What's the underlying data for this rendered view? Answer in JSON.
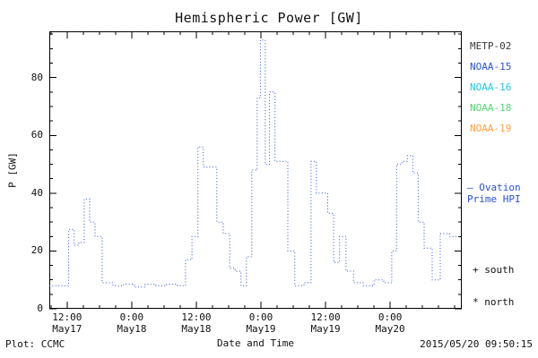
{
  "chart_data": {
    "type": "line",
    "style": "dotted-step",
    "title": "Hemispheric Power [GW]",
    "xlabel": "Date and Time",
    "ylabel": "P [GW]",
    "x_domain_hours": [
      -3.3,
      73.3
    ],
    "ylim": [
      0,
      96
    ],
    "y_ticks": [
      0,
      20,
      40,
      60,
      80
    ],
    "x_minor_step_hours": 3,
    "y_minor_step": 5,
    "grid": false,
    "x_ticks": [
      {
        "t": 0,
        "time": "12:00",
        "date": "May17"
      },
      {
        "t": 12,
        "time": "0:00",
        "date": "May18"
      },
      {
        "t": 24,
        "time": "12:00",
        "date": "May18"
      },
      {
        "t": 36,
        "time": "0:00",
        "date": "May19"
      },
      {
        "t": 48,
        "time": "12:00",
        "date": "May19"
      },
      {
        "t": 60,
        "time": "0:00",
        "date": "May20"
      }
    ],
    "series": [
      {
        "name": "Ovation Prime HPI",
        "color": "#2a52c9",
        "points": [
          [
            -3.3,
            8
          ],
          [
            0.3,
            27.5
          ],
          [
            1.3,
            22
          ],
          [
            2.2,
            23
          ],
          [
            3.2,
            38
          ],
          [
            4.2,
            30
          ],
          [
            5.2,
            25
          ],
          [
            6.5,
            9
          ],
          [
            8.5,
            8
          ],
          [
            10.5,
            8.5
          ],
          [
            12.5,
            7.5
          ],
          [
            14.5,
            8.5
          ],
          [
            16.5,
            8
          ],
          [
            18.5,
            8.5
          ],
          [
            20.5,
            8
          ],
          [
            22.0,
            17
          ],
          [
            23.2,
            25
          ],
          [
            24.3,
            56
          ],
          [
            25.3,
            49
          ],
          [
            27.0,
            49
          ],
          [
            27.8,
            30
          ],
          [
            29.0,
            26
          ],
          [
            30.2,
            14
          ],
          [
            31.2,
            13
          ],
          [
            32.3,
            8
          ],
          [
            33.3,
            18
          ],
          [
            34.3,
            48
          ],
          [
            35.3,
            73
          ],
          [
            35.9,
            93
          ],
          [
            36.8,
            50
          ],
          [
            37.6,
            75
          ],
          [
            38.6,
            51
          ],
          [
            39.8,
            51
          ],
          [
            41.0,
            20
          ],
          [
            42.3,
            8
          ],
          [
            44.0,
            9
          ],
          [
            45.3,
            51
          ],
          [
            46.3,
            40
          ],
          [
            47.6,
            40
          ],
          [
            48.4,
            33
          ],
          [
            49.5,
            16
          ],
          [
            50.6,
            25
          ],
          [
            51.8,
            13
          ],
          [
            53.2,
            9
          ],
          [
            55.0,
            8
          ],
          [
            57.0,
            10
          ],
          [
            58.8,
            9
          ],
          [
            60.3,
            20
          ],
          [
            61.2,
            50
          ],
          [
            62.2,
            51
          ],
          [
            63.2,
            53
          ],
          [
            64.2,
            47
          ],
          [
            65.2,
            30
          ],
          [
            66.3,
            21
          ],
          [
            67.8,
            10
          ],
          [
            69.3,
            26
          ],
          [
            71.0,
            25
          ],
          [
            73.3,
            25
          ]
        ]
      }
    ]
  },
  "legend": {
    "satellites": [
      {
        "label": "METP-02",
        "color": "#3a3a3a"
      },
      {
        "label": "NOAA-15",
        "color": "#2a52c9"
      },
      {
        "label": "NOAA-16",
        "color": "#1fc8dc"
      },
      {
        "label": "NOAA-18",
        "color": "#52d273"
      },
      {
        "label": "NOAA-19",
        "color": "#ffa040"
      }
    ],
    "line_label_line1": "— Ovation",
    "line_label_line2": "Prime HPI",
    "south_label": "+ south",
    "north_label": "* north"
  },
  "footer": {
    "left": "Plot: CCMC",
    "right": "2015/05/20 09:50:15"
  },
  "colors": {
    "frame": "#000000",
    "text": "#111111"
  }
}
